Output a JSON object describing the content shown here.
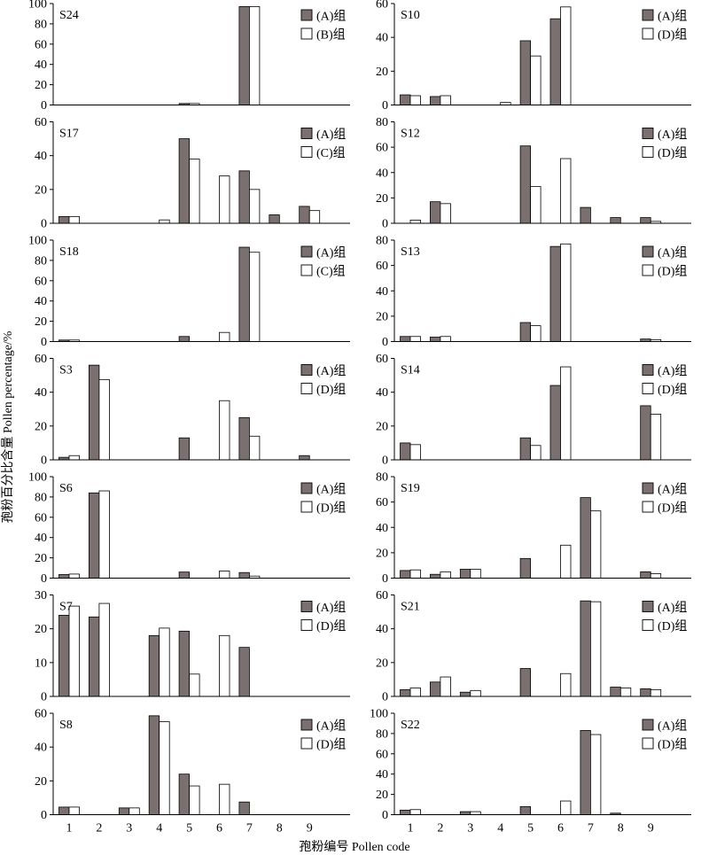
{
  "figure": {
    "xlabel": "孢粉编号 Pollen code",
    "ylabel": "孢粉百分比含量 Pollen percentage/%",
    "x_tick_labels": [
      "1",
      "2",
      "3",
      "4",
      "5",
      "6",
      "7",
      "8",
      "9"
    ],
    "colors": {
      "filled": "#7a7070",
      "open": "#ffffff",
      "axis": "#000000"
    }
  },
  "chart_data": [
    {
      "type": "bar",
      "title": "S24",
      "categories": [
        "1",
        "2",
        "3",
        "4",
        "5",
        "6",
        "7",
        "8",
        "9"
      ],
      "ylim": [
        0,
        100
      ],
      "yticks": [
        0,
        20,
        40,
        60,
        80,
        100
      ],
      "legend": "top-right",
      "series": [
        {
          "name": "(A)组",
          "values": [
            0,
            0,
            0,
            0,
            1.5,
            0,
            97,
            0,
            0
          ]
        },
        {
          "name": "(B)组",
          "values": [
            0,
            0,
            0,
            0,
            1.5,
            0,
            97,
            0,
            0
          ]
        }
      ]
    },
    {
      "type": "bar",
      "title": "S10",
      "categories": [
        "1",
        "2",
        "3",
        "4",
        "5",
        "6",
        "7",
        "8",
        "9"
      ],
      "ylim": [
        0,
        60
      ],
      "yticks": [
        0,
        20,
        40,
        60
      ],
      "legend": "top-right",
      "series": [
        {
          "name": "(A)组",
          "values": [
            6,
            5,
            0,
            0,
            38,
            51,
            0,
            0,
            0
          ]
        },
        {
          "name": "(D)组",
          "values": [
            5.5,
            5.5,
            0,
            1.5,
            29,
            58,
            0,
            0,
            0
          ]
        }
      ]
    },
    {
      "type": "bar",
      "title": "S17",
      "categories": [
        "1",
        "2",
        "3",
        "4",
        "5",
        "6",
        "7",
        "8",
        "9"
      ],
      "ylim": [
        0,
        60
      ],
      "yticks": [
        0,
        20,
        40,
        60
      ],
      "legend": "top-right",
      "series": [
        {
          "name": "(A)组",
          "values": [
            4,
            0,
            0,
            0,
            50,
            0,
            31,
            5,
            10
          ]
        },
        {
          "name": "(C)组",
          "values": [
            4,
            0,
            0,
            2,
            38,
            28,
            20,
            0,
            7.5
          ]
        }
      ]
    },
    {
      "type": "bar",
      "title": "S12",
      "categories": [
        "1",
        "2",
        "3",
        "4",
        "5",
        "6",
        "7",
        "8",
        "9"
      ],
      "ylim": [
        0,
        80
      ],
      "yticks": [
        0,
        20,
        40,
        60,
        80
      ],
      "legend": "top-right",
      "series": [
        {
          "name": "(A)组",
          "values": [
            0,
            17,
            0,
            0,
            61,
            0,
            12.5,
            4.5,
            4.5
          ]
        },
        {
          "name": "(D)组",
          "values": [
            2.5,
            15.5,
            0,
            0,
            29,
            51,
            0,
            0,
            1.5
          ]
        }
      ]
    },
    {
      "type": "bar",
      "title": "S18",
      "categories": [
        "1",
        "2",
        "3",
        "4",
        "5",
        "6",
        "7",
        "8",
        "9"
      ],
      "ylim": [
        0,
        100
      ],
      "yticks": [
        0,
        20,
        40,
        60,
        80,
        100
      ],
      "legend": "top-right",
      "series": [
        {
          "name": "(A)组",
          "values": [
            1.5,
            0,
            0,
            0,
            5,
            0,
            93,
            0,
            0
          ]
        },
        {
          "name": "(C)组",
          "values": [
            1.5,
            0,
            0,
            0,
            0,
            9,
            88,
            0,
            0
          ]
        }
      ]
    },
    {
      "type": "bar",
      "title": "S13",
      "categories": [
        "1",
        "2",
        "3",
        "4",
        "5",
        "6",
        "7",
        "8",
        "9"
      ],
      "ylim": [
        0,
        80
      ],
      "yticks": [
        0,
        20,
        40,
        60,
        80
      ],
      "legend": "top-right",
      "series": [
        {
          "name": "(A)组",
          "values": [
            4,
            3.5,
            0,
            0,
            15,
            75,
            0,
            0,
            2
          ]
        },
        {
          "name": "(D)组",
          "values": [
            4,
            4,
            0,
            0,
            12.5,
            77,
            0,
            0,
            1.5
          ]
        }
      ]
    },
    {
      "type": "bar",
      "title": "S3",
      "categories": [
        "1",
        "2",
        "3",
        "4",
        "5",
        "6",
        "7",
        "8",
        "9"
      ],
      "ylim": [
        0,
        60
      ],
      "yticks": [
        0,
        20,
        40,
        60
      ],
      "legend": "top-right",
      "series": [
        {
          "name": "(A)组",
          "values": [
            1.5,
            56,
            0,
            0,
            13,
            0,
            25,
            0,
            2.5
          ]
        },
        {
          "name": "(D)组",
          "values": [
            2.5,
            47.5,
            0,
            0,
            0,
            35,
            14,
            0,
            0
          ]
        }
      ]
    },
    {
      "type": "bar",
      "title": "S14",
      "categories": [
        "1",
        "2",
        "3",
        "4",
        "5",
        "6",
        "7",
        "8",
        "9"
      ],
      "ylim": [
        0,
        60
      ],
      "yticks": [
        0,
        20,
        40,
        60
      ],
      "legend": "top-right",
      "series": [
        {
          "name": "(A)组",
          "values": [
            10,
            0,
            0,
            0,
            13,
            44,
            0,
            0,
            32
          ]
        },
        {
          "name": "(D)组",
          "values": [
            9,
            0,
            0,
            0,
            8.5,
            55,
            0,
            0,
            27
          ]
        }
      ]
    },
    {
      "type": "bar",
      "title": "S6",
      "categories": [
        "1",
        "2",
        "3",
        "4",
        "5",
        "6",
        "7",
        "8",
        "9"
      ],
      "ylim": [
        0,
        100
      ],
      "yticks": [
        0,
        20,
        40,
        60,
        80,
        100
      ],
      "legend": "top-right",
      "series": [
        {
          "name": "(A)组",
          "values": [
            3.5,
            84,
            0,
            0,
            6,
            0,
            5.5,
            0,
            0
          ]
        },
        {
          "name": "(D)组",
          "values": [
            4,
            86,
            0,
            0,
            0,
            7,
            2,
            0,
            0
          ]
        }
      ]
    },
    {
      "type": "bar",
      "title": "S19",
      "categories": [
        "1",
        "2",
        "3",
        "4",
        "5",
        "6",
        "7",
        "8",
        "9"
      ],
      "ylim": [
        0,
        80
      ],
      "yticks": [
        0,
        20,
        40,
        60,
        80
      ],
      "legend": "top-right",
      "series": [
        {
          "name": "(A)组",
          "values": [
            6,
            3,
            7,
            0,
            15.5,
            0,
            63.5,
            0,
            5
          ]
        },
        {
          "name": "(D)组",
          "values": [
            6.5,
            5,
            7,
            0,
            0,
            26,
            53,
            0,
            3.5
          ]
        }
      ]
    },
    {
      "type": "bar",
      "title": "S7",
      "categories": [
        "1",
        "2",
        "3",
        "4",
        "5",
        "6",
        "7",
        "8",
        "9"
      ],
      "ylim": [
        0,
        30
      ],
      "yticks": [
        0,
        10,
        20,
        30
      ],
      "legend": "top-right",
      "series": [
        {
          "name": "(A)组",
          "values": [
            24,
            23.5,
            0,
            18,
            19.3,
            0,
            14.5,
            0,
            0
          ]
        },
        {
          "name": "(D)组",
          "values": [
            26.7,
            27.5,
            0,
            20.2,
            6.6,
            18,
            0,
            0,
            0
          ]
        }
      ]
    },
    {
      "type": "bar",
      "title": "S21",
      "categories": [
        "1",
        "2",
        "3",
        "4",
        "5",
        "6",
        "7",
        "8",
        "9"
      ],
      "ylim": [
        0,
        60
      ],
      "yticks": [
        0,
        20,
        40,
        60
      ],
      "legend": "top-right",
      "series": [
        {
          "name": "(A)组",
          "values": [
            4,
            8.5,
            2.5,
            0,
            16.5,
            0,
            56.5,
            5.5,
            4.5
          ]
        },
        {
          "name": "(D)组",
          "values": [
            5,
            11.5,
            3.5,
            0,
            0,
            13.5,
            56,
            5,
            4
          ]
        }
      ]
    },
    {
      "type": "bar",
      "title": "S8",
      "categories": [
        "1",
        "2",
        "3",
        "4",
        "5",
        "6",
        "7",
        "8",
        "9"
      ],
      "ylim": [
        0,
        60
      ],
      "yticks": [
        0,
        20,
        40,
        60
      ],
      "legend": "top-right",
      "series": [
        {
          "name": "(A)组",
          "values": [
            4.5,
            0,
            4,
            58.5,
            24,
            0,
            7.5,
            0,
            0
          ]
        },
        {
          "name": "(D)组",
          "values": [
            4.5,
            0,
            4,
            55,
            17,
            18,
            0,
            0,
            0
          ]
        }
      ]
    },
    {
      "type": "bar",
      "title": "S22",
      "categories": [
        "1",
        "2",
        "3",
        "4",
        "5",
        "6",
        "7",
        "8",
        "9"
      ],
      "ylim": [
        0,
        100
      ],
      "yticks": [
        0,
        20,
        40,
        60,
        80,
        100
      ],
      "legend": "top-right",
      "series": [
        {
          "name": "(A)组",
          "values": [
            4.5,
            0,
            3,
            0,
            8,
            0,
            83,
            1.5,
            0
          ]
        },
        {
          "name": "(D)组",
          "values": [
            5,
            0,
            3,
            0,
            0,
            13.5,
            79,
            0,
            0
          ]
        }
      ]
    }
  ]
}
